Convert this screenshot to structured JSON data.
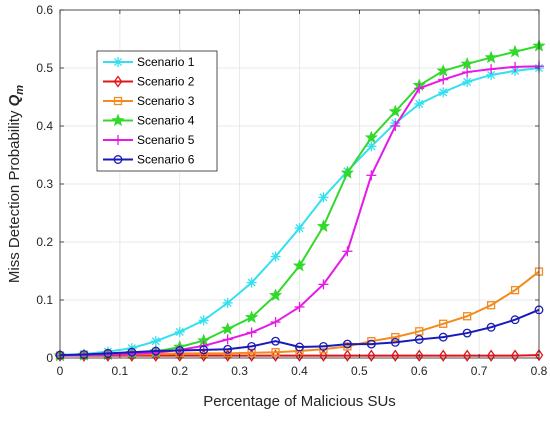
{
  "chart_data": {
    "type": "line",
    "xlabel": "Percentage of Malicious SUs",
    "ylabel": "Miss Detection Probability",
    "ylabel_symbol": "Q",
    "ylabel_subscript": "m",
    "xlim": [
      0,
      0.8
    ],
    "ylim": [
      0,
      0.6
    ],
    "xticks": [
      "0",
      "0.1",
      "0.2",
      "0.3",
      "0.4",
      "0.5",
      "0.6",
      "0.7",
      "0.8"
    ],
    "yticks": [
      "0",
      "0.1",
      "0.2",
      "0.3",
      "0.4",
      "0.5",
      "0.6"
    ],
    "grid": true,
    "legend_position": "top-left",
    "x": [
      0,
      0.04,
      0.08,
      0.12,
      0.16,
      0.2,
      0.24,
      0.28,
      0.32,
      0.36,
      0.4,
      0.44,
      0.48,
      0.52,
      0.56,
      0.6,
      0.64,
      0.68,
      0.72,
      0.76,
      0.8
    ],
    "series": [
      {
        "name": "Scenario 1",
        "color": "#33E0F0",
        "marker": "asterisk",
        "values": [
          0.005,
          0.007,
          0.011,
          0.017,
          0.029,
          0.045,
          0.065,
          0.095,
          0.13,
          0.175,
          0.224,
          0.277,
          0.322,
          0.365,
          0.405,
          0.438,
          0.458,
          0.476,
          0.488,
          0.495,
          0.5
        ]
      },
      {
        "name": "Scenario 2",
        "color": "#E0151B",
        "marker": "diamond",
        "values": [
          0.004,
          0.004,
          0.004,
          0.004,
          0.004,
          0.004,
          0.004,
          0.004,
          0.004,
          0.004,
          0.004,
          0.004,
          0.004,
          0.004,
          0.004,
          0.004,
          0.004,
          0.004,
          0.004,
          0.004,
          0.005
        ]
      },
      {
        "name": "Scenario 3",
        "color": "#F28A1E",
        "marker": "square",
        "values": [
          0.004,
          0.005,
          0.006,
          0.006,
          0.007,
          0.008,
          0.008,
          0.008,
          0.009,
          0.01,
          0.012,
          0.015,
          0.02,
          0.029,
          0.036,
          0.046,
          0.059,
          0.072,
          0.091,
          0.117,
          0.149
        ]
      },
      {
        "name": "Scenario 4",
        "color": "#31D92B",
        "marker": "star",
        "values": [
          0.004,
          0.005,
          0.006,
          0.008,
          0.011,
          0.019,
          0.03,
          0.05,
          0.07,
          0.108,
          0.159,
          0.227,
          0.319,
          0.38,
          0.425,
          0.47,
          0.495,
          0.507,
          0.518,
          0.528,
          0.538
        ]
      },
      {
        "name": "Scenario 5",
        "color": "#E619E6",
        "marker": "plus",
        "values": [
          0.004,
          0.005,
          0.006,
          0.007,
          0.009,
          0.014,
          0.021,
          0.032,
          0.044,
          0.062,
          0.088,
          0.127,
          0.184,
          0.315,
          0.4,
          0.465,
          0.48,
          0.493,
          0.498,
          0.502,
          0.503
        ]
      },
      {
        "name": "Scenario 6",
        "color": "#1A1AB8",
        "marker": "circle",
        "values": [
          0.005,
          0.006,
          0.008,
          0.01,
          0.012,
          0.013,
          0.014,
          0.015,
          0.02,
          0.029,
          0.019,
          0.02,
          0.024,
          0.024,
          0.027,
          0.032,
          0.036,
          0.043,
          0.053,
          0.066,
          0.083
        ]
      }
    ]
  }
}
